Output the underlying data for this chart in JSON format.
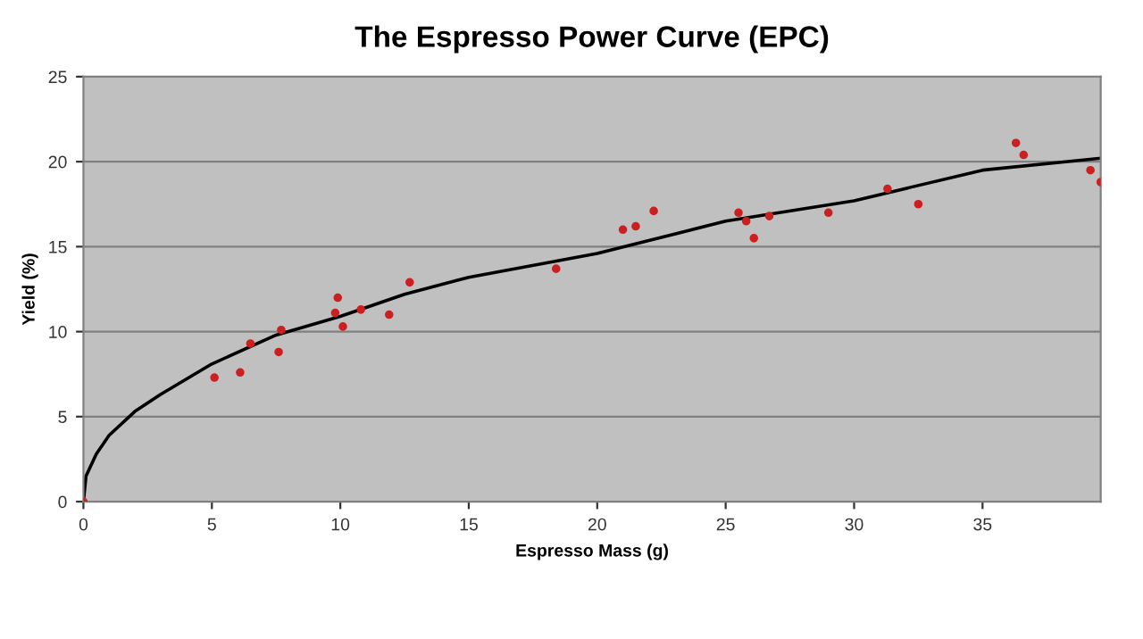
{
  "chart_data": {
    "type": "scatter",
    "title": "The Espresso Power Curve (EPC)",
    "xlabel": "Espresso Mass (g)",
    "ylabel": "Yield (%)",
    "xlim": [
      0,
      39.6
    ],
    "xticks": [
      0,
      5,
      10,
      15,
      20,
      25,
      30,
      35
    ],
    "ylim": [
      0,
      25
    ],
    "yticks": [
      0,
      5,
      10,
      15,
      20,
      25
    ],
    "grid": "y",
    "legend": false,
    "series": [
      {
        "color": "#cc2020",
        "marker": "circle",
        "x": [
          0,
          5.1,
          6.1,
          6.5,
          7.6,
          7.7,
          9.8,
          9.9,
          10.1,
          10.8,
          11.9,
          12.7,
          18.4,
          21.0,
          21.5,
          22.2,
          25.5,
          25.8,
          26.1,
          26.7,
          29.0,
          31.3,
          32.5,
          36.3,
          36.6,
          39.2,
          39.6
        ],
        "values": [
          0,
          7.3,
          7.6,
          9.3,
          8.8,
          10.1,
          11.1,
          12.0,
          10.3,
          11.3,
          11.0,
          12.9,
          13.7,
          16.0,
          16.2,
          17.1,
          17.0,
          16.5,
          15.5,
          16.8,
          17.0,
          18.4,
          17.5,
          21.1,
          20.4,
          19.5,
          18.8
        ]
      },
      {
        "type": "line",
        "color": "#000000",
        "marker": "none",
        "line_style": "solid",
        "x": [
          0,
          0.1,
          0.5,
          1,
          2,
          3,
          5,
          7.5,
          10,
          12.5,
          15,
          20,
          25,
          30,
          35,
          39.6
        ],
        "values": [
          0,
          1.5,
          2.8,
          3.9,
          5.3,
          6.3,
          8.1,
          9.8,
          10.9,
          12.2,
          13.2,
          14.6,
          16.5,
          17.7,
          19.5,
          20.2
        ]
      }
    ]
  }
}
